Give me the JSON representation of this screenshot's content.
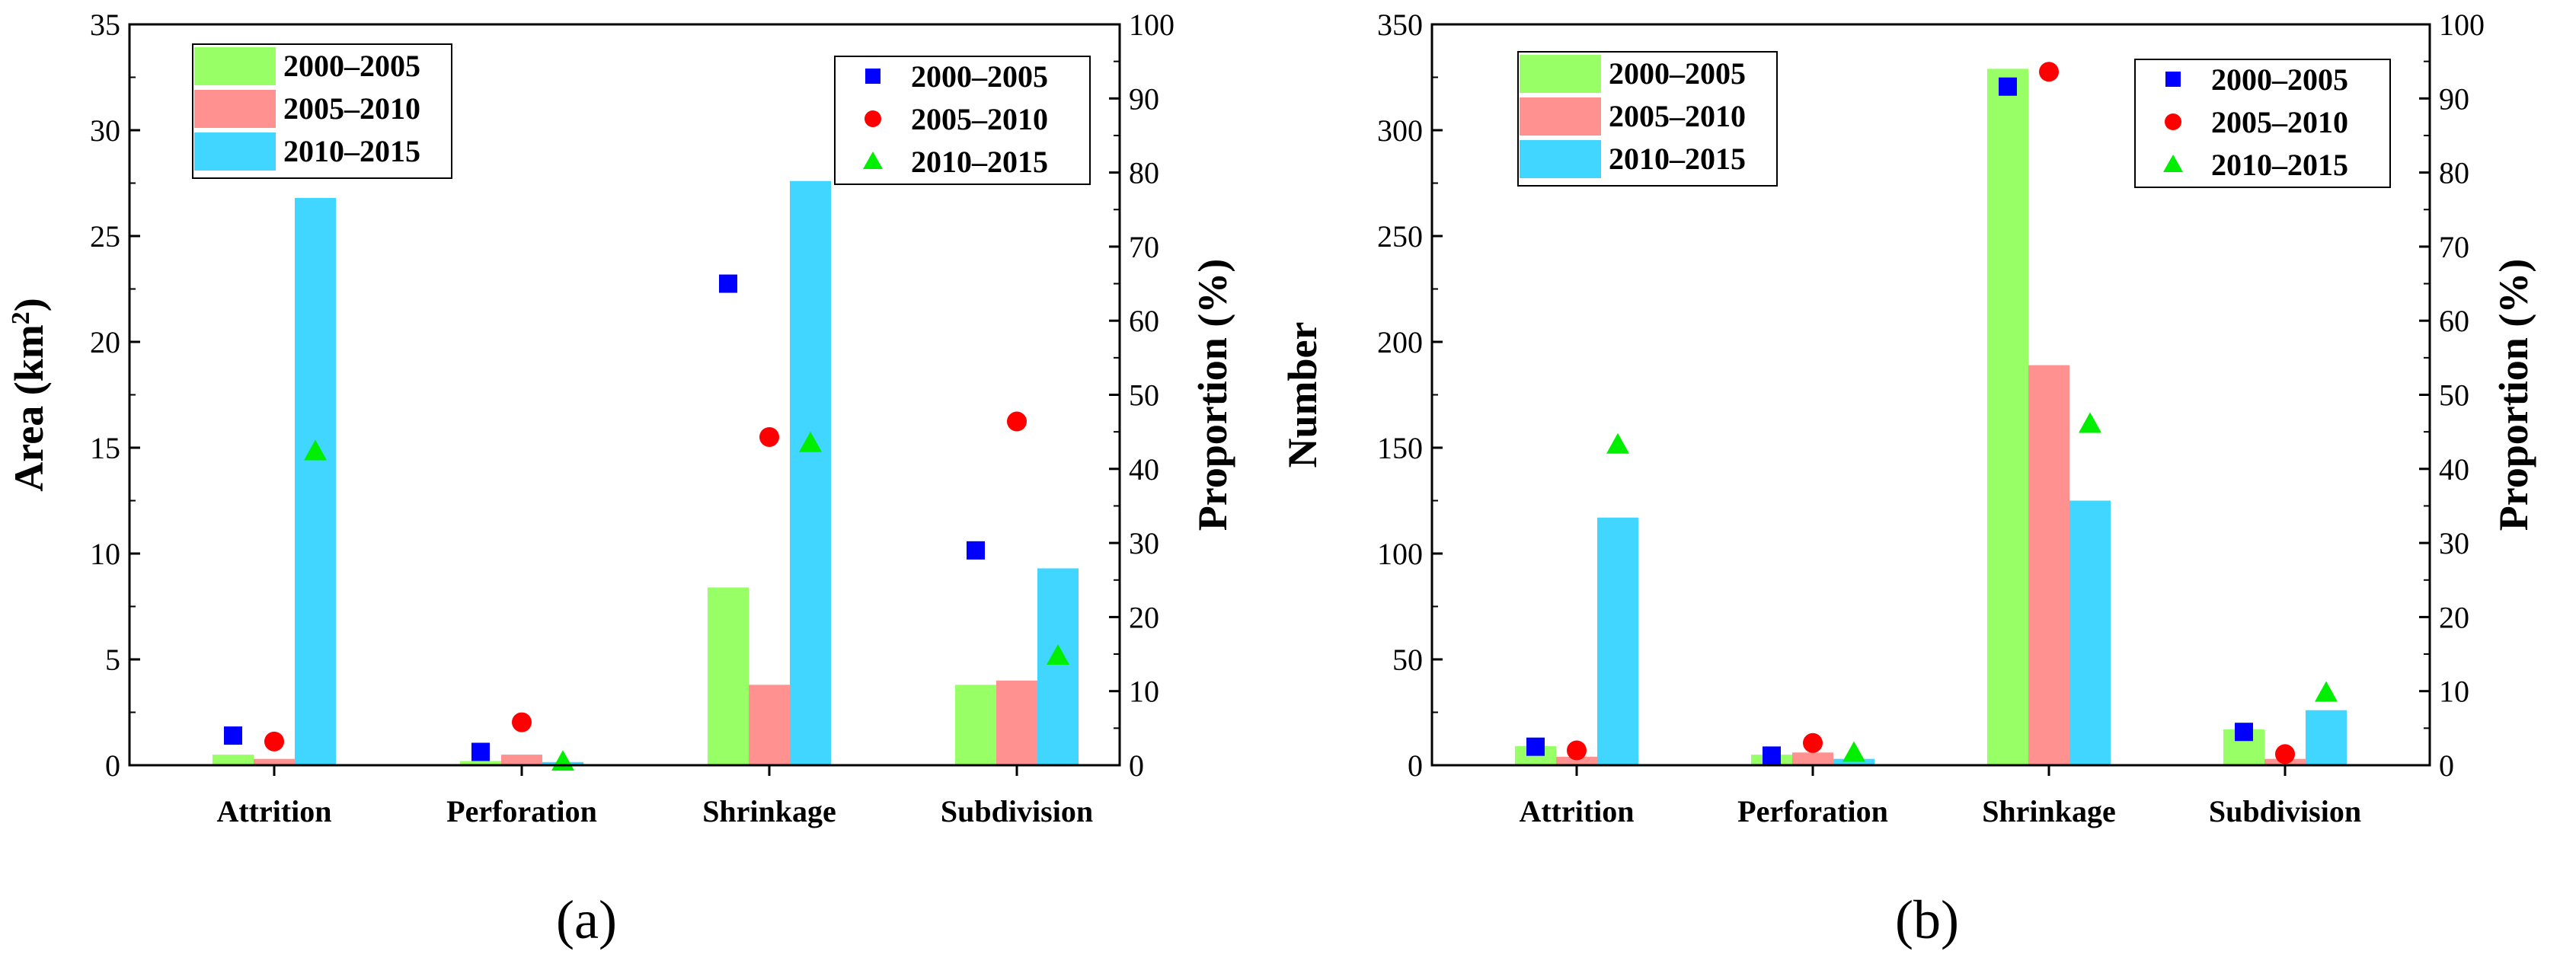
{
  "colors": {
    "bar_2000_2005": "#99ff66",
    "bar_2005_2010": "#ff9191",
    "bar_2010_2015": "#40d6ff",
    "marker_2000_2005": "#0000ff",
    "marker_2005_2010": "#ff0000",
    "marker_2010_2015": "#00ee00"
  },
  "chart_data": [
    {
      "type": "bar",
      "panel_label": "(a)",
      "categories": [
        "Attrition",
        "Perforation",
        "Shrinkage",
        "Subdivision"
      ],
      "ylabel": "Area (km",
      "ylabel_sup": "2",
      "ylabel_close": ")",
      "y2label": "Proportion (%)",
      "ylim": [
        0,
        35
      ],
      "yticks": [
        0,
        5,
        10,
        15,
        20,
        25,
        30,
        35
      ],
      "y2lim": [
        0,
        100
      ],
      "y2ticks": [
        0,
        10,
        20,
        30,
        40,
        50,
        60,
        70,
        80,
        90,
        100
      ],
      "bar_legend": [
        "2000–2005",
        "2005–2010",
        "2010–2015"
      ],
      "marker_legend": [
        "2000–2005",
        "2005–2010",
        "2010–2015"
      ],
      "series": [
        {
          "name": "2000–2005",
          "values": [
            0.5,
            0.2,
            8.4,
            3.8
          ]
        },
        {
          "name": "2005–2010",
          "values": [
            0.3,
            0.5,
            3.8,
            4.0
          ]
        },
        {
          "name": "2010–2015",
          "values": [
            26.8,
            0.15,
            27.6,
            9.3
          ]
        }
      ],
      "proportion_series": [
        {
          "name": "2000–2005",
          "marker": "square",
          "values": [
            4.0,
            1.8,
            65.0,
            29.0
          ]
        },
        {
          "name": "2005–2010",
          "marker": "circle",
          "values": [
            3.2,
            5.8,
            44.3,
            46.4
          ]
        },
        {
          "name": "2010–2015",
          "marker": "triangle",
          "values": [
            42.4,
            0.5,
            43.5,
            14.8
          ]
        }
      ]
    },
    {
      "type": "bar",
      "panel_label": "(b)",
      "categories": [
        "Attrition",
        "Perforation",
        "Shrinkage",
        "Subdivision"
      ],
      "ylabel": "Number",
      "y2label": "Proportion (%)",
      "ylim": [
        0,
        350
      ],
      "yticks": [
        0,
        50,
        100,
        150,
        200,
        250,
        300,
        350
      ],
      "y2lim": [
        0,
        100
      ],
      "y2ticks": [
        0,
        10,
        20,
        30,
        40,
        50,
        60,
        70,
        80,
        90,
        100
      ],
      "bar_legend": [
        "2000–2005",
        "2005–2010",
        "2010–2015"
      ],
      "marker_legend": [
        "2000–2005",
        "2005–2010",
        "2010–2015"
      ],
      "series": [
        {
          "name": "2000–2005",
          "values": [
            9,
            5,
            329,
            17
          ]
        },
        {
          "name": "2005–2010",
          "values": [
            4,
            6,
            189,
            3
          ]
        },
        {
          "name": "2010–2015",
          "values": [
            117,
            3,
            125,
            26
          ]
        }
      ],
      "proportion_series": [
        {
          "name": "2000–2005",
          "marker": "square",
          "values": [
            2.5,
            1.3,
            91.6,
            4.5
          ]
        },
        {
          "name": "2005–2010",
          "marker": "circle",
          "values": [
            2.0,
            3.0,
            93.6,
            1.5
          ]
        },
        {
          "name": "2010–2015",
          "marker": "triangle",
          "values": [
            43.3,
            1.7,
            46.1,
            9.8
          ]
        }
      ]
    }
  ]
}
